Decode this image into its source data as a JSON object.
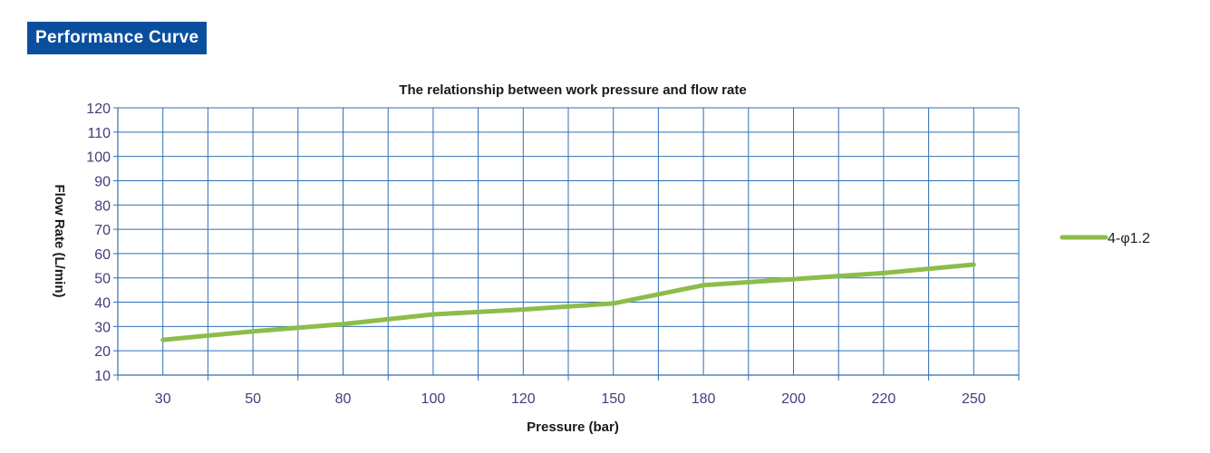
{
  "header": {
    "title": "Performance Curve",
    "badge_color": "#0a4f9e"
  },
  "chart_data": {
    "type": "line",
    "title": "The relationship between work pressure and flow rate",
    "xlabel": "Pressure (bar)",
    "ylabel": "Flow Rate (L/min)",
    "categories": [
      "30",
      "50",
      "80",
      "100",
      "120",
      "150",
      "180",
      "200",
      "220",
      "250"
    ],
    "series": [
      {
        "name": "4-φ1.2",
        "color": "#8cbd4a",
        "x": [
          0,
          1,
          1.5,
          2,
          3,
          4,
          5,
          6,
          7,
          8,
          9
        ],
        "values": [
          24.5,
          28,
          29.5,
          31,
          35,
          37,
          39.5,
          47,
          49.5,
          52,
          55.5
        ]
      }
    ],
    "ylim": [
      10,
      120
    ],
    "yticks": [
      10,
      20,
      30,
      40,
      50,
      60,
      70,
      80,
      90,
      100,
      110,
      120
    ],
    "grid": true,
    "grid_color": "#2f6fb5",
    "legend_position": "right"
  }
}
